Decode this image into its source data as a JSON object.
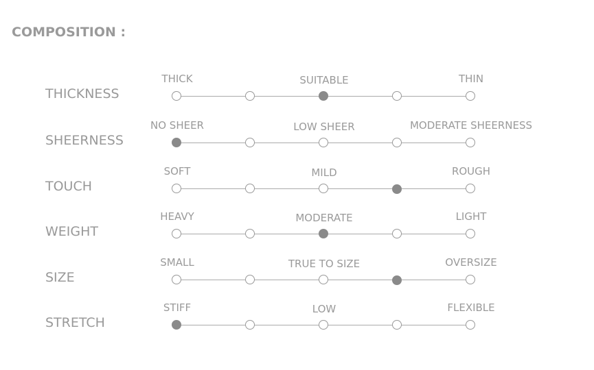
{
  "title": "COMPOSITION :",
  "colors": {
    "text": "#999999",
    "selected_dot": "#8a8a8a",
    "track": "#aaaaaa"
  },
  "rows": [
    {
      "label": "THICKNESS",
      "left": "THICK",
      "middle": "SUITABLE",
      "right": "THIN",
      "selected": 2
    },
    {
      "label": "SHEERNESS",
      "left": "NO SHEER",
      "middle": "LOW SHEER",
      "right": "MODERATE SHEERNESS",
      "selected": 0
    },
    {
      "label": "TOUCH",
      "left": "SOFT",
      "middle": "MILD",
      "right": "ROUGH",
      "selected": 3
    },
    {
      "label": "WEIGHT",
      "left": "HEAVY",
      "middle": "MODERATE",
      "right": "LIGHT",
      "selected": 2
    },
    {
      "label": "SIZE",
      "left": "SMALL",
      "middle": "TRUE TO SIZE",
      "right": "OVERSIZE",
      "selected": 3
    },
    {
      "label": "STRETCH",
      "left": "STIFF",
      "middle": "LOW",
      "right": "FLEXIBLE",
      "selected": 0
    }
  ]
}
